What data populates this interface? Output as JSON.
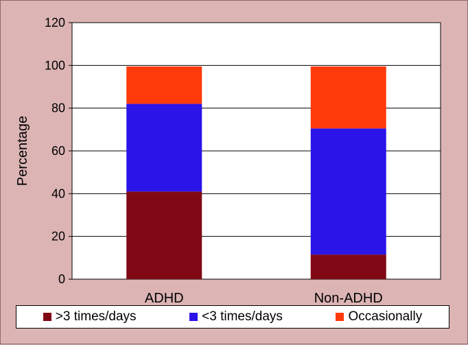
{
  "chart_data": {
    "type": "bar",
    "stacked": true,
    "categories": [
      "ADHD",
      "Non-ADHD"
    ],
    "series": [
      {
        "name": ">3 times/days",
        "color": "#800815",
        "values": [
          41,
          11.5
        ]
      },
      {
        "name": "<3 times/days",
        "color": "#2a14e8",
        "values": [
          41,
          59
        ]
      },
      {
        "name": "Occasionally",
        "color": "#ff3a0a",
        "values": [
          17.5,
          29
        ]
      }
    ],
    "yticks": [
      "0",
      "20",
      "40",
      "60",
      "80",
      "100",
      "120"
    ],
    "ylim": [
      0,
      120
    ],
    "ylabel": "Percentage",
    "xlabel": "",
    "title": "",
    "grid": true,
    "legend_position": "bottom"
  }
}
